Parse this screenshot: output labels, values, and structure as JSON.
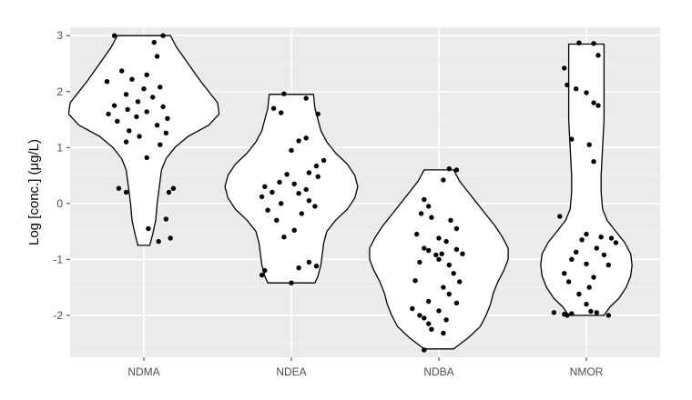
{
  "chart_data": {
    "type": "violin",
    "ylabel": "Log [conc.] (μg/L)",
    "xlabel": "",
    "title": "",
    "categories": [
      "NDMA",
      "NDEA",
      "NDBA",
      "NMOR"
    ],
    "ylim": [
      -2.75,
      3.15
    ],
    "yticks": [
      {
        "value": 3,
        "label": "3"
      },
      {
        "value": 2,
        "label": "2"
      },
      {
        "value": 1,
        "label": "1"
      },
      {
        "value": 0,
        "label": "0"
      },
      {
        "value": -1,
        "label": "-1"
      },
      {
        "value": -2,
        "label": "-2"
      }
    ],
    "grid": true,
    "legend": "none",
    "colors": {
      "panel": "#ebebeb",
      "grid_major": "#ffffff",
      "grid_minor": "#f5f5f5",
      "violin_fill": "#ffffff",
      "violin_stroke": "#000000",
      "points": "#000000"
    },
    "groups": [
      {
        "name": "NDMA",
        "violin": [
          [
            3.0,
            0.18
          ],
          [
            2.8,
            0.22
          ],
          [
            2.5,
            0.3
          ],
          [
            2.2,
            0.38
          ],
          [
            2.0,
            0.44
          ],
          [
            1.8,
            0.5
          ],
          [
            1.6,
            0.51
          ],
          [
            1.4,
            0.44
          ],
          [
            1.2,
            0.3
          ],
          [
            1.0,
            0.21
          ],
          [
            0.8,
            0.15
          ],
          [
            0.6,
            0.12
          ],
          [
            0.4,
            0.11
          ],
          [
            0.2,
            0.1
          ],
          [
            0.0,
            0.09
          ],
          [
            -0.3,
            0.08
          ],
          [
            -0.55,
            0.06
          ],
          [
            -0.75,
            0.04
          ]
        ],
        "points": [
          [
            -0.2,
            3.0
          ],
          [
            0.13,
            3.0
          ],
          [
            0.07,
            2.88
          ],
          [
            0.09,
            2.63
          ],
          [
            -0.15,
            2.37
          ],
          [
            0.02,
            2.3
          ],
          [
            -0.08,
            2.22
          ],
          [
            -0.25,
            2.18
          ],
          [
            0.11,
            2.08
          ],
          [
            0.0,
            2.05
          ],
          [
            -0.12,
            1.95
          ],
          [
            0.06,
            1.9
          ],
          [
            -0.04,
            1.82
          ],
          [
            -0.2,
            1.75
          ],
          [
            0.13,
            1.73
          ],
          [
            -0.11,
            1.68
          ],
          [
            0.02,
            1.64
          ],
          [
            -0.24,
            1.6
          ],
          [
            -0.05,
            1.55
          ],
          [
            0.16,
            1.52
          ],
          [
            -0.18,
            1.47
          ],
          [
            0.09,
            1.4
          ],
          [
            -0.1,
            1.3
          ],
          [
            0.15,
            1.26
          ],
          [
            -0.03,
            1.2
          ],
          [
            -0.12,
            1.1
          ],
          [
            0.11,
            1.05
          ],
          [
            0.02,
            0.82
          ],
          [
            -0.17,
            0.27
          ],
          [
            0.2,
            0.27
          ],
          [
            -0.12,
            0.2
          ],
          [
            0.17,
            0.2
          ],
          [
            0.15,
            -0.28
          ],
          [
            0.03,
            -0.45
          ],
          [
            0.18,
            -0.62
          ],
          [
            0.1,
            -0.68
          ]
        ]
      },
      {
        "name": "NDEA",
        "violin": [
          [
            1.95,
            0.15
          ],
          [
            1.7,
            0.16
          ],
          [
            1.5,
            0.18
          ],
          [
            1.3,
            0.2
          ],
          [
            1.1,
            0.24
          ],
          [
            0.9,
            0.3
          ],
          [
            0.7,
            0.38
          ],
          [
            0.5,
            0.43
          ],
          [
            0.3,
            0.45
          ],
          [
            0.1,
            0.43
          ],
          [
            -0.1,
            0.38
          ],
          [
            -0.3,
            0.3
          ],
          [
            -0.5,
            0.24
          ],
          [
            -0.7,
            0.22
          ],
          [
            -0.9,
            0.21
          ],
          [
            -1.1,
            0.2
          ],
          [
            -1.3,
            0.18
          ],
          [
            -1.42,
            0.16
          ]
        ],
        "points": [
          [
            -0.05,
            1.96
          ],
          [
            0.1,
            1.88
          ],
          [
            -0.12,
            1.7
          ],
          [
            -0.07,
            1.62
          ],
          [
            0.18,
            1.6
          ],
          [
            0.1,
            1.17
          ],
          [
            0.05,
            1.12
          ],
          [
            0.0,
            0.95
          ],
          [
            0.22,
            0.77
          ],
          [
            0.17,
            0.67
          ],
          [
            0.12,
            0.55
          ],
          [
            -0.03,
            0.52
          ],
          [
            0.18,
            0.48
          ],
          [
            -0.08,
            0.38
          ],
          [
            0.02,
            0.35
          ],
          [
            -0.18,
            0.3
          ],
          [
            0.1,
            0.25
          ],
          [
            -0.13,
            0.2
          ],
          [
            0.05,
            0.18
          ],
          [
            -0.2,
            0.12
          ],
          [
            0.12,
            0.05
          ],
          [
            -0.07,
            0.0
          ],
          [
            0.16,
            -0.05
          ],
          [
            -0.16,
            -0.12
          ],
          [
            0.07,
            -0.18
          ],
          [
            -0.1,
            -0.3
          ],
          [
            0.02,
            -0.48
          ],
          [
            -0.05,
            -0.6
          ],
          [
            0.12,
            -1.05
          ],
          [
            0.05,
            -1.15
          ],
          [
            -0.18,
            -1.2
          ],
          [
            0.17,
            -1.12
          ],
          [
            -0.2,
            -1.28
          ],
          [
            0.0,
            -1.42
          ]
        ]
      },
      {
        "name": "NDBA",
        "violin": [
          [
            0.6,
            0.1
          ],
          [
            0.4,
            0.14
          ],
          [
            0.2,
            0.2
          ],
          [
            0.0,
            0.26
          ],
          [
            -0.2,
            0.32
          ],
          [
            -0.4,
            0.38
          ],
          [
            -0.6,
            0.43
          ],
          [
            -0.8,
            0.47
          ],
          [
            -1.0,
            0.47
          ],
          [
            -1.2,
            0.44
          ],
          [
            -1.4,
            0.4
          ],
          [
            -1.6,
            0.37
          ],
          [
            -1.8,
            0.35
          ],
          [
            -2.0,
            0.32
          ],
          [
            -2.2,
            0.28
          ],
          [
            -2.4,
            0.2
          ],
          [
            -2.5,
            0.15
          ],
          [
            -2.6,
            0.1
          ]
        ],
        "points": [
          [
            0.07,
            0.62
          ],
          [
            0.12,
            0.6
          ],
          [
            0.03,
            0.42
          ],
          [
            -0.1,
            0.07
          ],
          [
            -0.07,
            -0.05
          ],
          [
            -0.12,
            -0.18
          ],
          [
            -0.05,
            -0.25
          ],
          [
            0.08,
            -0.3
          ],
          [
            0.12,
            -0.45
          ],
          [
            -0.15,
            -0.55
          ],
          [
            0.0,
            -0.62
          ],
          [
            0.05,
            -0.68
          ],
          [
            -0.1,
            -0.8
          ],
          [
            -0.07,
            -0.84
          ],
          [
            0.12,
            -0.82
          ],
          [
            0.02,
            -0.9
          ],
          [
            -0.02,
            -0.92
          ],
          [
            0.16,
            -0.9
          ],
          [
            0.0,
            -1.0
          ],
          [
            -0.13,
            -1.05
          ],
          [
            0.07,
            -1.1
          ],
          [
            0.1,
            -1.25
          ],
          [
            -0.16,
            -1.38
          ],
          [
            0.14,
            -1.4
          ],
          [
            0.03,
            -1.5
          ],
          [
            0.07,
            -1.62
          ],
          [
            -0.07,
            -1.75
          ],
          [
            -0.18,
            -1.88
          ],
          [
            0.12,
            -1.78
          ],
          [
            0.0,
            -1.92
          ],
          [
            -0.13,
            -2.0
          ],
          [
            -0.1,
            -2.05
          ],
          [
            0.05,
            -2.08
          ],
          [
            -0.07,
            -2.15
          ],
          [
            -0.05,
            -2.25
          ],
          [
            0.03,
            -2.32
          ],
          [
            -0.1,
            -2.62
          ]
        ]
      },
      {
        "name": "NMOR",
        "violin": [
          [
            2.85,
            0.12
          ],
          [
            2.5,
            0.12
          ],
          [
            2.0,
            0.12
          ],
          [
            1.5,
            0.12
          ],
          [
            1.0,
            0.11
          ],
          [
            0.5,
            0.1
          ],
          [
            0.2,
            0.1
          ],
          [
            -0.1,
            0.11
          ],
          [
            -0.3,
            0.14
          ],
          [
            -0.5,
            0.2
          ],
          [
            -0.7,
            0.26
          ],
          [
            -0.9,
            0.3
          ],
          [
            -1.1,
            0.31
          ],
          [
            -1.3,
            0.3
          ],
          [
            -1.5,
            0.27
          ],
          [
            -1.7,
            0.22
          ],
          [
            -1.85,
            0.16
          ],
          [
            -2.0,
            0.12
          ]
        ],
        "points": [
          [
            -0.05,
            2.87
          ],
          [
            0.05,
            2.86
          ],
          [
            0.08,
            2.65
          ],
          [
            -0.15,
            2.42
          ],
          [
            -0.13,
            2.12
          ],
          [
            -0.07,
            2.05
          ],
          [
            0.0,
            1.98
          ],
          [
            0.05,
            1.8
          ],
          [
            0.08,
            1.75
          ],
          [
            -0.1,
            1.15
          ],
          [
            0.02,
            1.05
          ],
          [
            0.05,
            0.75
          ],
          [
            -0.18,
            -0.23
          ],
          [
            0.0,
            -0.55
          ],
          [
            0.1,
            -0.6
          ],
          [
            0.17,
            -0.62
          ],
          [
            -0.03,
            -0.65
          ],
          [
            0.2,
            -0.7
          ],
          [
            0.07,
            -0.8
          ],
          [
            -0.07,
            -0.87
          ],
          [
            0.12,
            -0.92
          ],
          [
            -0.1,
            -1.0
          ],
          [
            0.0,
            -1.08
          ],
          [
            0.15,
            -1.1
          ],
          [
            -0.15,
            -1.25
          ],
          [
            0.05,
            -1.32
          ],
          [
            -0.12,
            -1.4
          ],
          [
            0.02,
            -1.5
          ],
          [
            -0.05,
            -1.62
          ],
          [
            0.0,
            -1.8
          ],
          [
            -0.22,
            -1.95
          ],
          [
            -0.15,
            -1.98
          ],
          [
            -0.1,
            -1.97
          ],
          [
            0.03,
            -1.93
          ],
          [
            0.07,
            -1.95
          ],
          [
            -0.13,
            -2.0
          ],
          [
            0.15,
            -2.0
          ]
        ]
      }
    ]
  }
}
